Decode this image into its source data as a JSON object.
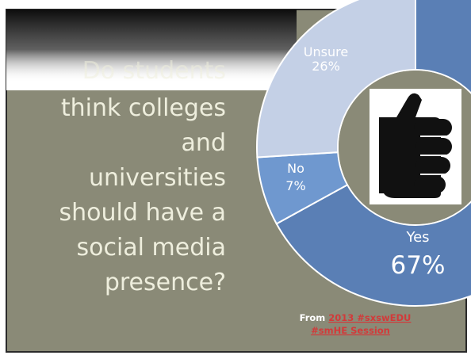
{
  "slide": {
    "title_lines": [
      "Do students",
      "think colleges",
      "and",
      "universities",
      "should have a",
      "social media",
      "presence?"
    ],
    "source": {
      "prefix": "From",
      "link_line1": "2013 #sxswEDU",
      "link_line2": "#smHE Session"
    }
  },
  "colors": {
    "slide_background": "#8a8a77",
    "title_text": "#eeeedd",
    "yes": "#5a7fb5",
    "no": "#6f98cf",
    "unsure": "#c4d0e6",
    "donut_hole": "#8a8a77",
    "link": "#d23a3a"
  },
  "icons": {
    "center": "thumbs-up-icon"
  },
  "chart_data": {
    "type": "pie",
    "style": "donut",
    "title": "",
    "slices": [
      {
        "label": "Yes",
        "value": 67,
        "display": "67%"
      },
      {
        "label": "No",
        "value": 7,
        "display": "7%"
      },
      {
        "label": "Unsure",
        "value": 26,
        "display": "26%"
      }
    ]
  }
}
